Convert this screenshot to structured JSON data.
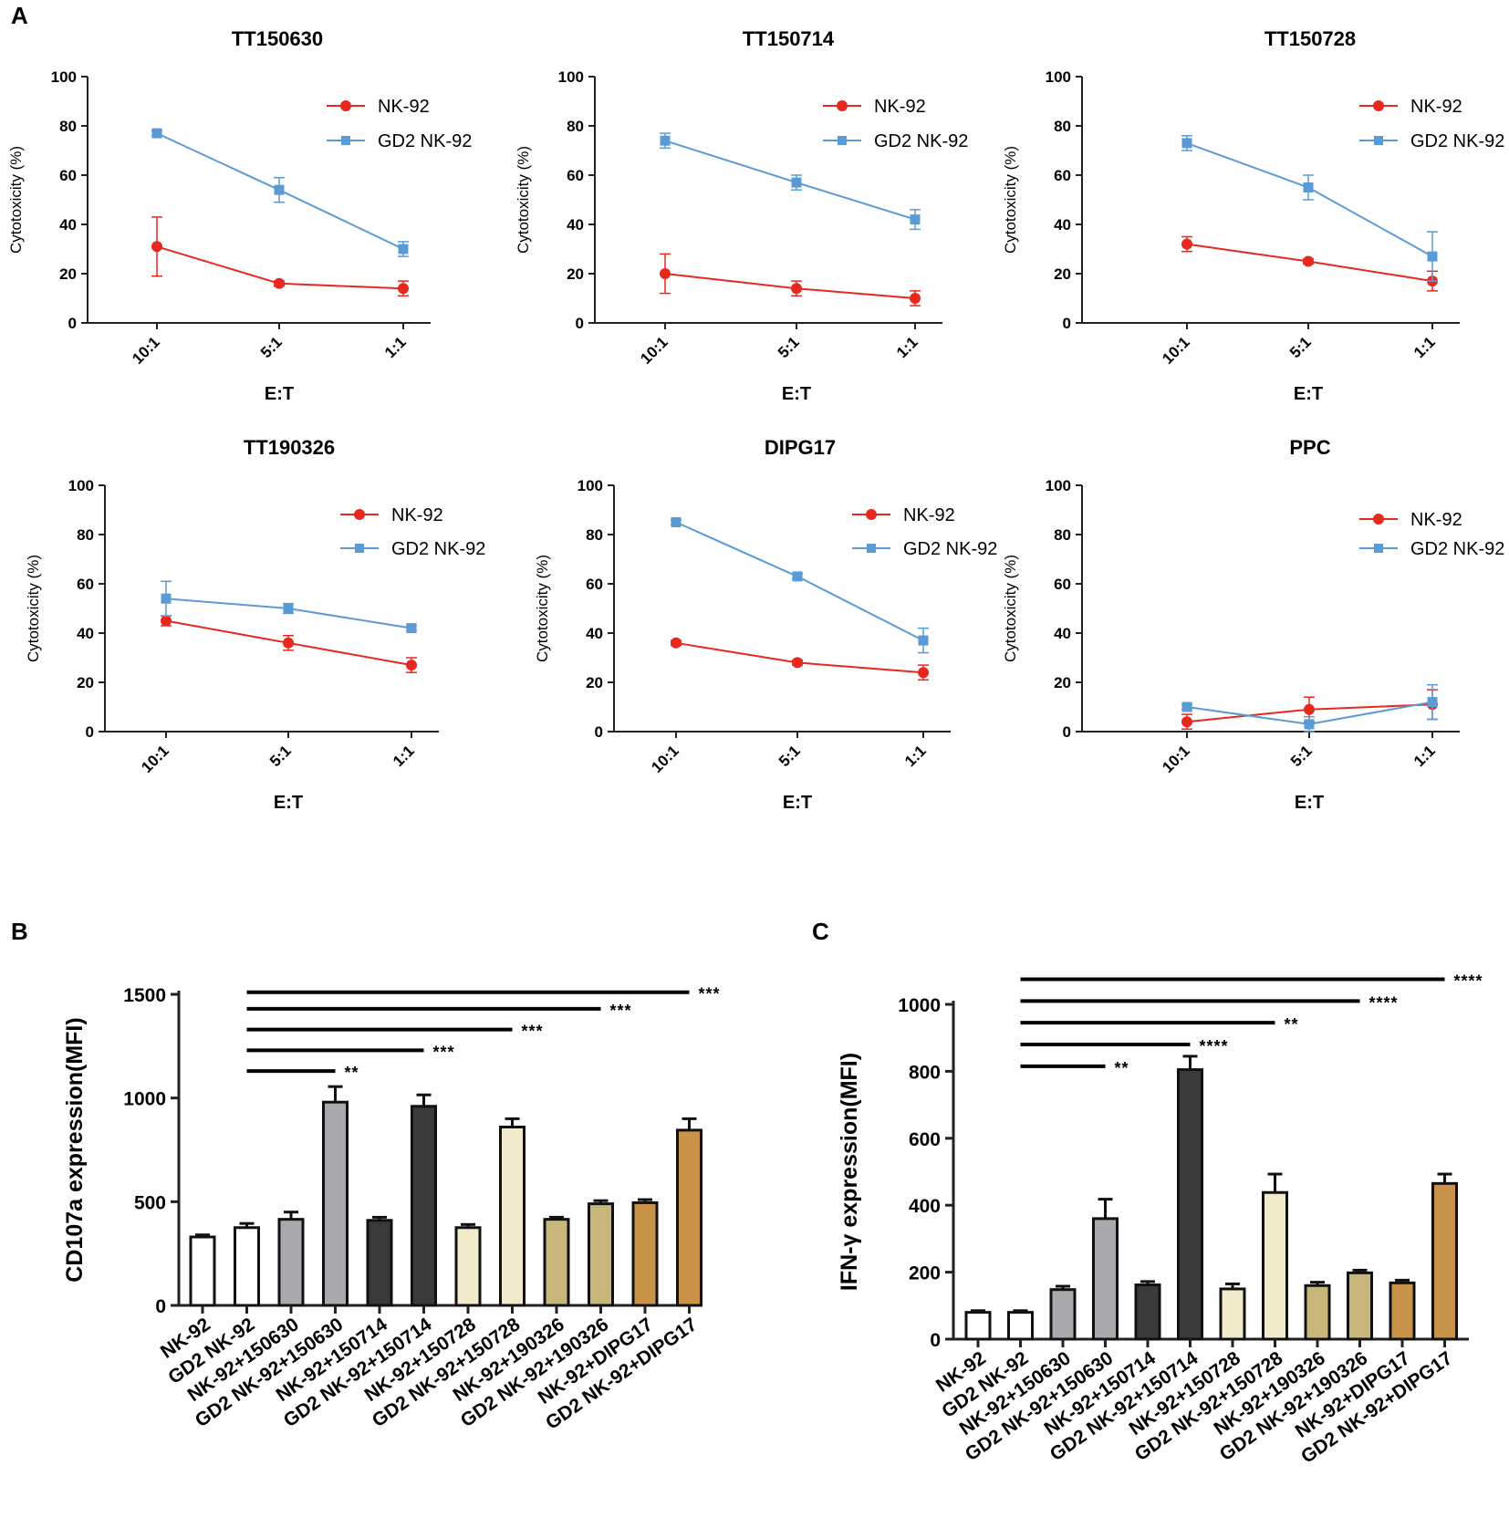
{
  "panel_labels": {
    "a": "A",
    "b": "B",
    "c": "C"
  },
  "colors": {
    "nk92": "#e8281e",
    "gd2nk92": "#5b9bd5",
    "axis": "#222222",
    "bars": [
      "#ffffff",
      "#ffffff",
      "#a9a9ae",
      "#a9a9ae",
      "#3a3a3a",
      "#3a3a3a",
      "#f1ebcc",
      "#f1ebcc",
      "#c8b67a",
      "#c8b67a",
      "#c9934a",
      "#c9934a"
    ]
  },
  "chart_data": [
    {
      "id": "tt150630",
      "type": "line",
      "title": "TT150630",
      "categories": [
        "10:1",
        "5:1",
        "1:1"
      ],
      "xlabel": "E:T",
      "ylabel": "Cytotoxicity (%)",
      "ylim": [
        0,
        100
      ],
      "yticks": [
        "0",
        "20",
        "40",
        "60",
        "80",
        "100"
      ],
      "legend": "top-right",
      "series": [
        {
          "name": "NK-92",
          "values": [
            31,
            16,
            14
          ],
          "errors": [
            12,
            1,
            3
          ]
        },
        {
          "name": "GD2 NK-92",
          "values": [
            77,
            54,
            30
          ],
          "errors": [
            1,
            5,
            3
          ]
        }
      ]
    },
    {
      "id": "tt150714",
      "type": "line",
      "title": "TT150714",
      "categories": [
        "10:1",
        "5:1",
        "1:1"
      ],
      "xlabel": "E:T",
      "ylabel": "Cytotoxicity (%)",
      "ylim": [
        0,
        100
      ],
      "yticks": [
        "0",
        "20",
        "40",
        "60",
        "80",
        "100"
      ],
      "legend": "top-right",
      "series": [
        {
          "name": "NK-92",
          "values": [
            20,
            14,
            10
          ],
          "errors": [
            8,
            3,
            3
          ]
        },
        {
          "name": "GD2 NK-92",
          "values": [
            74,
            57,
            42
          ],
          "errors": [
            3,
            3,
            4
          ]
        }
      ]
    },
    {
      "id": "tt150728",
      "type": "line",
      "title": "TT150728",
      "categories": [
        "10:1",
        "5:1",
        "1:1"
      ],
      "xlabel": "E:T",
      "ylabel": "Cytotoxicity (%)",
      "ylim": [
        0,
        100
      ],
      "yticks": [
        "0",
        "20",
        "40",
        "60",
        "80",
        "100"
      ],
      "legend": "top-right",
      "series": [
        {
          "name": "NK-92",
          "values": [
            32,
            25,
            17
          ],
          "errors": [
            3,
            1,
            4
          ]
        },
        {
          "name": "GD2 NK-92",
          "values": [
            73,
            55,
            27
          ],
          "errors": [
            3,
            5,
            10
          ]
        }
      ]
    },
    {
      "id": "tt190326",
      "type": "line",
      "title": "TT190326",
      "categories": [
        "10:1",
        "5:1",
        "1:1"
      ],
      "xlabel": "E:T",
      "ylabel": "Cytotoxicity (%)",
      "ylim": [
        0,
        100
      ],
      "yticks": [
        "0",
        "20",
        "40",
        "60",
        "80",
        "100"
      ],
      "legend": "top-right",
      "series": [
        {
          "name": "NK-92",
          "values": [
            45,
            36,
            27
          ],
          "errors": [
            2,
            3,
            3
          ]
        },
        {
          "name": "GD2 NK-92",
          "values": [
            54,
            50,
            42
          ],
          "errors": [
            7,
            2,
            1
          ]
        }
      ]
    },
    {
      "id": "dipg17",
      "type": "line",
      "title": "DIPG17",
      "categories": [
        "10:1",
        "5:1",
        "1:1"
      ],
      "xlabel": "E:T",
      "ylabel": "Cytotoxicity (%)",
      "ylim": [
        0,
        100
      ],
      "yticks": [
        "0",
        "20",
        "40",
        "60",
        "80",
        "100"
      ],
      "legend": "top-right",
      "series": [
        {
          "name": "NK-92",
          "values": [
            36,
            28,
            24
          ],
          "errors": [
            1,
            1,
            3
          ]
        },
        {
          "name": "GD2 NK-92",
          "values": [
            85,
            63,
            37
          ],
          "errors": [
            1,
            1,
            5
          ]
        }
      ]
    },
    {
      "id": "ppc",
      "type": "line",
      "title": "PPC",
      "categories": [
        "10:1",
        "5:1",
        "1:1"
      ],
      "xlabel": "E:T",
      "ylabel": "Cytotoxicity (%)",
      "ylim": [
        0,
        100
      ],
      "yticks": [
        "0",
        "20",
        "40",
        "60",
        "80",
        "100"
      ],
      "legend": "top-right",
      "series": [
        {
          "name": "NK-92",
          "values": [
            4,
            9,
            11
          ],
          "errors": [
            3,
            5,
            6
          ]
        },
        {
          "name": "GD2 NK-92",
          "values": [
            10,
            3,
            12
          ],
          "errors": [
            1,
            3,
            7
          ]
        }
      ]
    },
    {
      "id": "cd107a",
      "type": "bar",
      "ylabel": "CD107a expression(MFI)",
      "ylim": [
        0,
        1500
      ],
      "yticks": [
        "0",
        "500",
        "1000",
        "1500"
      ],
      "categories": [
        "NK-92",
        "GD2 NK-92",
        "NK-92+150630",
        "GD2 NK-92+150630",
        "NK-92+150714",
        "GD2 NK-92+150714",
        "NK-92+150728",
        "GD2 NK-92+150728",
        "NK-92+190326",
        "GD2 NK-92+190326",
        "NK-92+DIPG17",
        "GD2 NK-92+DIPG17"
      ],
      "values": [
        330,
        375,
        415,
        980,
        410,
        960,
        375,
        860,
        415,
        490,
        495,
        845
      ],
      "errors": [
        10,
        20,
        35,
        75,
        15,
        55,
        15,
        40,
        10,
        15,
        15,
        55
      ],
      "significance": [
        {
          "from": 1,
          "to": 3,
          "label": "**",
          "y": 1130
        },
        {
          "from": 1,
          "to": 5,
          "label": "***",
          "y": 1230
        },
        {
          "from": 1,
          "to": 7,
          "label": "***",
          "y": 1330
        },
        {
          "from": 1,
          "to": 9,
          "label": "***",
          "y": 1430
        },
        {
          "from": 1,
          "to": 11,
          "label": "***",
          "y": 1510
        }
      ]
    },
    {
      "id": "ifng",
      "type": "bar",
      "ylabel": "IFN-γ expression(MFI)",
      "ylim": [
        0,
        1000
      ],
      "yticks": [
        "0",
        "200",
        "400",
        "600",
        "800",
        "1000"
      ],
      "categories": [
        "NK-92",
        "GD2 NK-92",
        "NK-92+150630",
        "GD2 NK-92+150630",
        "NK-92+150714",
        "GD2 NK-92+150714",
        "NK-92+150728",
        "GD2 NK-92+150728",
        "NK-92+190326",
        "GD2 NK-92+190326",
        "NK-92+DIPG17",
        "GD2 NK-92+DIPG17"
      ],
      "values": [
        80,
        80,
        148,
        360,
        162,
        805,
        150,
        438,
        160,
        198,
        168,
        465
      ],
      "errors": [
        5,
        5,
        10,
        58,
        10,
        40,
        15,
        55,
        10,
        8,
        8,
        28
      ],
      "significance": [
        {
          "from": 1,
          "to": 3,
          "label": "**",
          "y": 815
        },
        {
          "from": 1,
          "to": 5,
          "label": "****",
          "y": 880
        },
        {
          "from": 1,
          "to": 7,
          "label": "**",
          "y": 945
        },
        {
          "from": 1,
          "to": 9,
          "label": "****",
          "y": 1010
        },
        {
          "from": 1,
          "to": 11,
          "label": "****",
          "y": 1075
        }
      ]
    }
  ]
}
